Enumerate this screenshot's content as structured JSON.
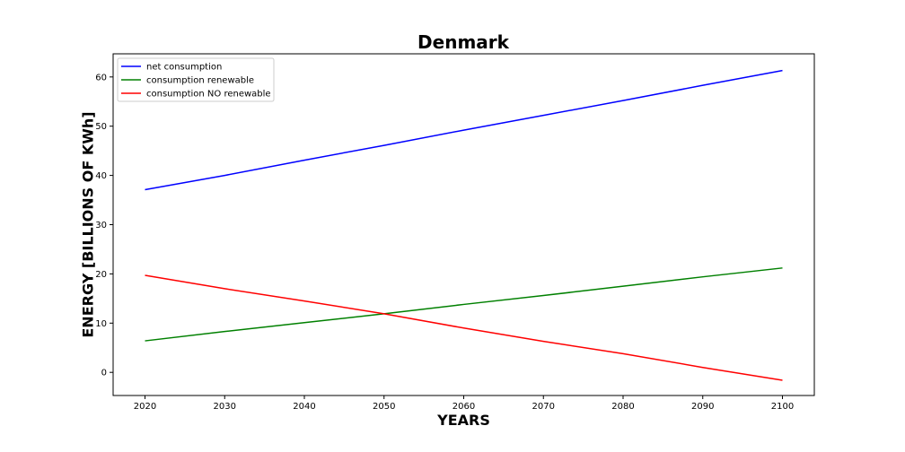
{
  "chart_data": {
    "type": "line",
    "title": "Denmark",
    "xlabel": "YEARS",
    "ylabel": "ENERGY [BILLIONS OF KWh]",
    "xlim": [
      2016,
      2104
    ],
    "ylim": [
      -4.7,
      64.7
    ],
    "xticks": [
      2020,
      2030,
      2040,
      2050,
      2060,
      2070,
      2080,
      2090,
      2100
    ],
    "yticks": [
      0,
      10,
      20,
      30,
      40,
      50,
      60
    ],
    "grid": false,
    "legend_position": "top-left",
    "x": [
      2020,
      2030,
      2040,
      2050,
      2060,
      2070,
      2080,
      2090,
      2100
    ],
    "series": [
      {
        "name": "net consumption",
        "color": "#0000ff",
        "values": [
          37.1,
          40.0,
          43.1,
          46.1,
          49.2,
          52.2,
          55.2,
          58.3,
          61.3
        ]
      },
      {
        "name": "consumption renewable",
        "color": "#008000",
        "values": [
          6.4,
          8.3,
          10.1,
          11.9,
          13.8,
          15.6,
          17.5,
          19.4,
          21.2
        ]
      },
      {
        "name": "consumption NO renewable",
        "color": "#ff0000",
        "values": [
          19.7,
          17.0,
          14.5,
          11.9,
          9.0,
          6.3,
          3.8,
          1.0,
          -1.6
        ]
      }
    ]
  }
}
